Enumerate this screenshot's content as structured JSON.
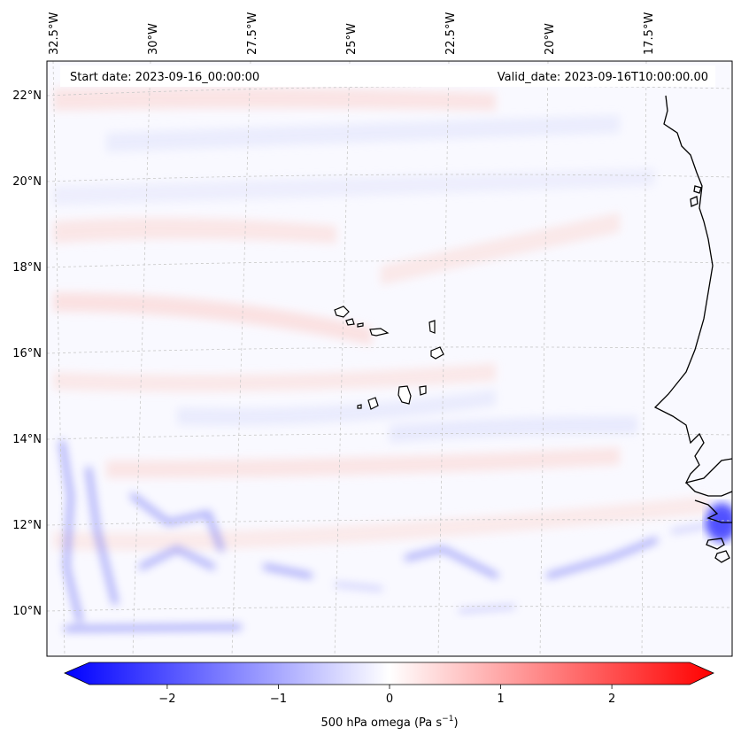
{
  "header": {
    "start_date": "Start date: 2023-09-16_00:00:00",
    "valid_date": "Valid_date: 2023-09-16T10:00:00.00"
  },
  "axes": {
    "longitude_labels": [
      {
        "lon": -32.5,
        "text": "32.5°W"
      },
      {
        "lon": -30.0,
        "text": "30°W"
      },
      {
        "lon": -27.5,
        "text": "27.5°W"
      },
      {
        "lon": -25.0,
        "text": "25°W"
      },
      {
        "lon": -22.5,
        "text": "22.5°W"
      },
      {
        "lon": -20.0,
        "text": "20°W"
      },
      {
        "lon": -17.5,
        "text": "17.5°W"
      }
    ],
    "latitude_labels": [
      {
        "lat": 22,
        "text": "22°N"
      },
      {
        "lat": 20,
        "text": "20°N"
      },
      {
        "lat": 18,
        "text": "18°N"
      },
      {
        "lat": 16,
        "text": "16°N"
      },
      {
        "lat": 14,
        "text": "14°N"
      },
      {
        "lat": 12,
        "text": "12°N"
      },
      {
        "lat": 10,
        "text": "10°N"
      }
    ]
  },
  "colorbar": {
    "label": "500 hPa omega (Pa s",
    "label_sup": "−1",
    "label_close": ")",
    "range": [
      -2.7,
      2.7
    ],
    "ticks": [
      {
        "value": -2,
        "text": "−2"
      },
      {
        "value": -1,
        "text": "−1"
      },
      {
        "value": 0,
        "text": "0"
      },
      {
        "value": 1,
        "text": "1"
      },
      {
        "value": 2,
        "text": "2"
      }
    ],
    "colors": {
      "negative": "#0000ff",
      "zero": "#ffffff",
      "positive": "#ff0000"
    }
  },
  "map": {
    "projection": "lambert-conformal",
    "gridlines": true,
    "gridline_color": "#c8c8c8",
    "coastline_color": "#000000",
    "field_description_colors": {
      "weak_positive": "#fbe8e8",
      "weak_negative": "#ecedfd",
      "neutral": "#f8f8ff"
    }
  }
}
